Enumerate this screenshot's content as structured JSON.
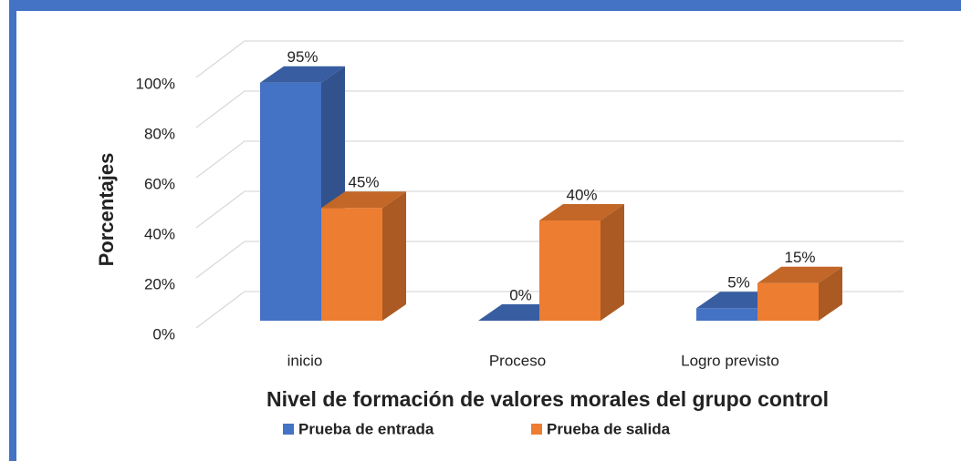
{
  "chart_data": {
    "type": "bar3d",
    "x_label": "Nivel de formación de valores  morales del grupo control",
    "y_label": "Porcentajes",
    "categories": [
      "inicio",
      "Proceso",
      "Logro previsto"
    ],
    "series": [
      {
        "name": "Prueba de entrada",
        "color": "#4472c4",
        "values": [
          95,
          0,
          5
        ],
        "value_labels": [
          "95%",
          "0%",
          "5%"
        ]
      },
      {
        "name": "Prueba de salida",
        "color": "#ed7d31",
        "values": [
          45,
          40,
          15
        ],
        "value_labels": [
          "45%",
          "40%",
          "15%"
        ]
      }
    ],
    "ylim": [
      0,
      100
    ],
    "yticks": [
      {
        "value": 0,
        "label": "0%"
      },
      {
        "value": 20,
        "label": "20%"
      },
      {
        "value": 40,
        "label": "40%"
      },
      {
        "value": 60,
        "label": "60%"
      },
      {
        "value": 80,
        "label": "80%"
      },
      {
        "value": 100,
        "label": "100%"
      }
    ],
    "grid": true,
    "legend": "bottom"
  }
}
